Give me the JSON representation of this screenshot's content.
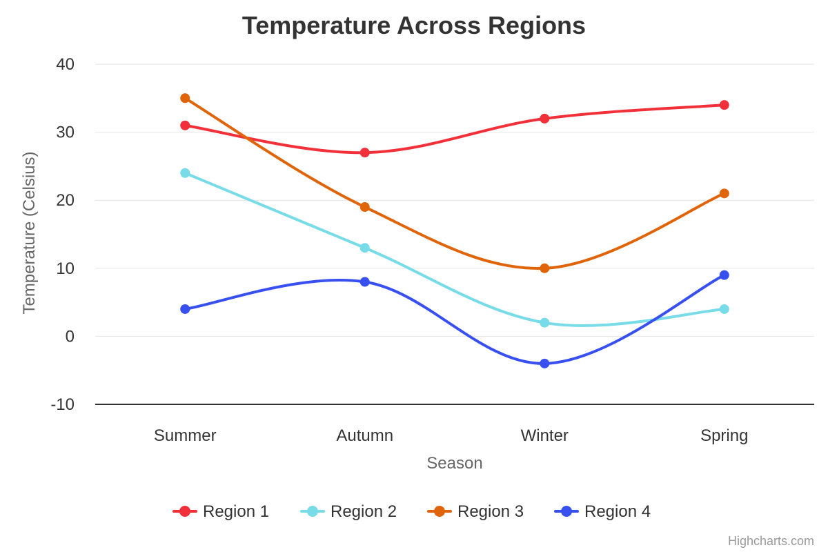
{
  "chart_data": {
    "type": "line",
    "title": "Temperature Across Regions",
    "xlabel": "Season",
    "ylabel": "Temperature (Celsius)",
    "categories": [
      "Summer",
      "Autumn",
      "Winter",
      "Spring"
    ],
    "ylim": [
      -10,
      40
    ],
    "yticks": [
      -10,
      0,
      10,
      20,
      30,
      40
    ],
    "grid": true,
    "smooth": true,
    "legend": "bottom-center",
    "series": [
      {
        "name": "Region 1",
        "color": "#f2303a",
        "values": [
          31,
          27,
          32,
          34
        ]
      },
      {
        "name": "Region 2",
        "color": "#78dbe8",
        "values": [
          24,
          13,
          2,
          4
        ]
      },
      {
        "name": "Region 3",
        "color": "#e06409",
        "values": [
          35,
          19,
          10,
          21
        ]
      },
      {
        "name": "Region 4",
        "color": "#3850f0",
        "values": [
          4,
          8,
          -4,
          9
        ]
      }
    ]
  },
  "credits": "Highcharts.com"
}
